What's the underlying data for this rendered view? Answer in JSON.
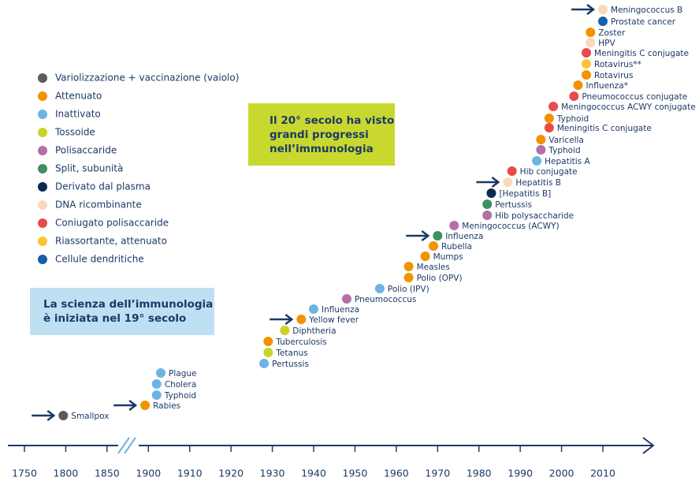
{
  "chart_data": {
    "type": "timeline",
    "legend": [
      {
        "label": "Variolizzazione + vaccinazione (vaiolo)",
        "color": "#5b5b5b"
      },
      {
        "label": "Attenuato",
        "color": "#f39200"
      },
      {
        "label": "Inattivato",
        "color": "#6cb4e4"
      },
      {
        "label": "Tossoide",
        "color": "#c8d42a"
      },
      {
        "label": "Polisaccaride",
        "color": "#b46fa8"
      },
      {
        "label": "Split, subunità",
        "color": "#3f8f63"
      },
      {
        "label": "Derivato dal plasma",
        "color": "#0b2b4f"
      },
      {
        "label": "DNA ricombinante",
        "color": "#fcd9b6"
      },
      {
        "label": "Coniugato polisaccaride",
        "color": "#e84b4b"
      },
      {
        "label": "Riassortante, attenuato",
        "color": "#f9c532"
      },
      {
        "label": "Cellule dendritiche",
        "color": "#1560a8"
      }
    ],
    "box_20th": [
      "Il 20° secolo ha visto",
      "grandi progressi",
      "nell’immunologia"
    ],
    "box_19th": [
      "La scienza dell’immunologia",
      "è iniziata nel 19° secolo"
    ],
    "xticks": [
      1750,
      1800,
      1850,
      1900,
      1910,
      1920,
      1930,
      1940,
      1950,
      1960,
      1970,
      1980,
      1990,
      2000,
      2010
    ],
    "events": [
      {
        "label": "Smallpox",
        "year": 1797,
        "color": "#5b5b5b"
      },
      {
        "label": "Rabies",
        "year": 1896,
        "color": "#f39200"
      },
      {
        "label": "Typhoid",
        "year": 1902,
        "color": "#6cb4e4"
      },
      {
        "label": "Cholera",
        "year": 1902,
        "color": "#6cb4e4"
      },
      {
        "label": "Plague",
        "year": 1903,
        "color": "#6cb4e4"
      },
      {
        "label": "Pertussis",
        "year": 1928,
        "color": "#6cb4e4"
      },
      {
        "label": "Tetanus",
        "year": 1929,
        "color": "#c8d42a"
      },
      {
        "label": "Tuberculosis",
        "year": 1929,
        "color": "#f39200"
      },
      {
        "label": "Diphtheria",
        "year": 1933,
        "color": "#c8d42a"
      },
      {
        "label": "Yellow fever",
        "year": 1937,
        "color": "#f39200"
      },
      {
        "label": "Influenza",
        "year": 1940,
        "color": "#6cb4e4"
      },
      {
        "label": "Pneumococcus",
        "year": 1948,
        "color": "#b46fa8"
      },
      {
        "label": "Polio (IPV)",
        "year": 1956,
        "color": "#6cb4e4"
      },
      {
        "label": "Polio (OPV)",
        "year": 1963,
        "color": "#f39200"
      },
      {
        "label": "Measles",
        "year": 1963,
        "color": "#f39200"
      },
      {
        "label": "Mumps",
        "year": 1967,
        "color": "#f39200"
      },
      {
        "label": "Rubella",
        "year": 1969,
        "color": "#f39200"
      },
      {
        "label": "Influenza",
        "year": 1970,
        "color": "#3f8f63"
      },
      {
        "label": "Meningococcus (ACWY)",
        "year": 1974,
        "color": "#b46fa8"
      },
      {
        "label": "Hib polysaccharide",
        "year": 1982,
        "color": "#b46fa8"
      },
      {
        "label": "Pertussis",
        "year": 1982,
        "color": "#3f8f63"
      },
      {
        "label": "[Hepatitis B]",
        "year": 1983,
        "color": "#0b2b4f"
      },
      {
        "label": "Hepatitis B",
        "year": 1987,
        "color": "#fcd9b6"
      },
      {
        "label": "Hib conjugate",
        "year": 1988,
        "color": "#e84b4b"
      },
      {
        "label": "Hepatitis A",
        "year": 1994,
        "color": "#6cb4e4"
      },
      {
        "label": "Typhoid",
        "year": 1995,
        "color": "#b46fa8"
      },
      {
        "label": "Varicella",
        "year": 1995,
        "color": "#f39200"
      },
      {
        "label": "Meningitis C conjugate",
        "year": 1997,
        "color": "#e84b4b"
      },
      {
        "label": "Typhoid",
        "year": 1997,
        "color": "#f39200"
      },
      {
        "label": "Meningococcus ACWY conjugate",
        "year": 1998,
        "color": "#e84b4b"
      },
      {
        "label": "Pneumococcus conjugate",
        "year": 2003,
        "color": "#e84b4b"
      },
      {
        "label": "Influenza*",
        "year": 2004,
        "color": "#f39200"
      },
      {
        "label": "Rotavirus",
        "year": 2006,
        "color": "#f39200"
      },
      {
        "label": "Rotavirus**",
        "year": 2006,
        "color": "#f9c532"
      },
      {
        "label": "Meningitis C conjugate",
        "year": 2006,
        "color": "#e84b4b"
      },
      {
        "label": "HPV",
        "year": 2007,
        "color": "#fcd9b6"
      },
      {
        "label": "Zoster",
        "year": 2007,
        "color": "#f39200"
      },
      {
        "label": "Prostate cancer",
        "year": 2010,
        "color": "#1560a8"
      },
      {
        "label": "Meningococcus B",
        "year": 2010,
        "color": "#fcd9b6"
      }
    ]
  }
}
